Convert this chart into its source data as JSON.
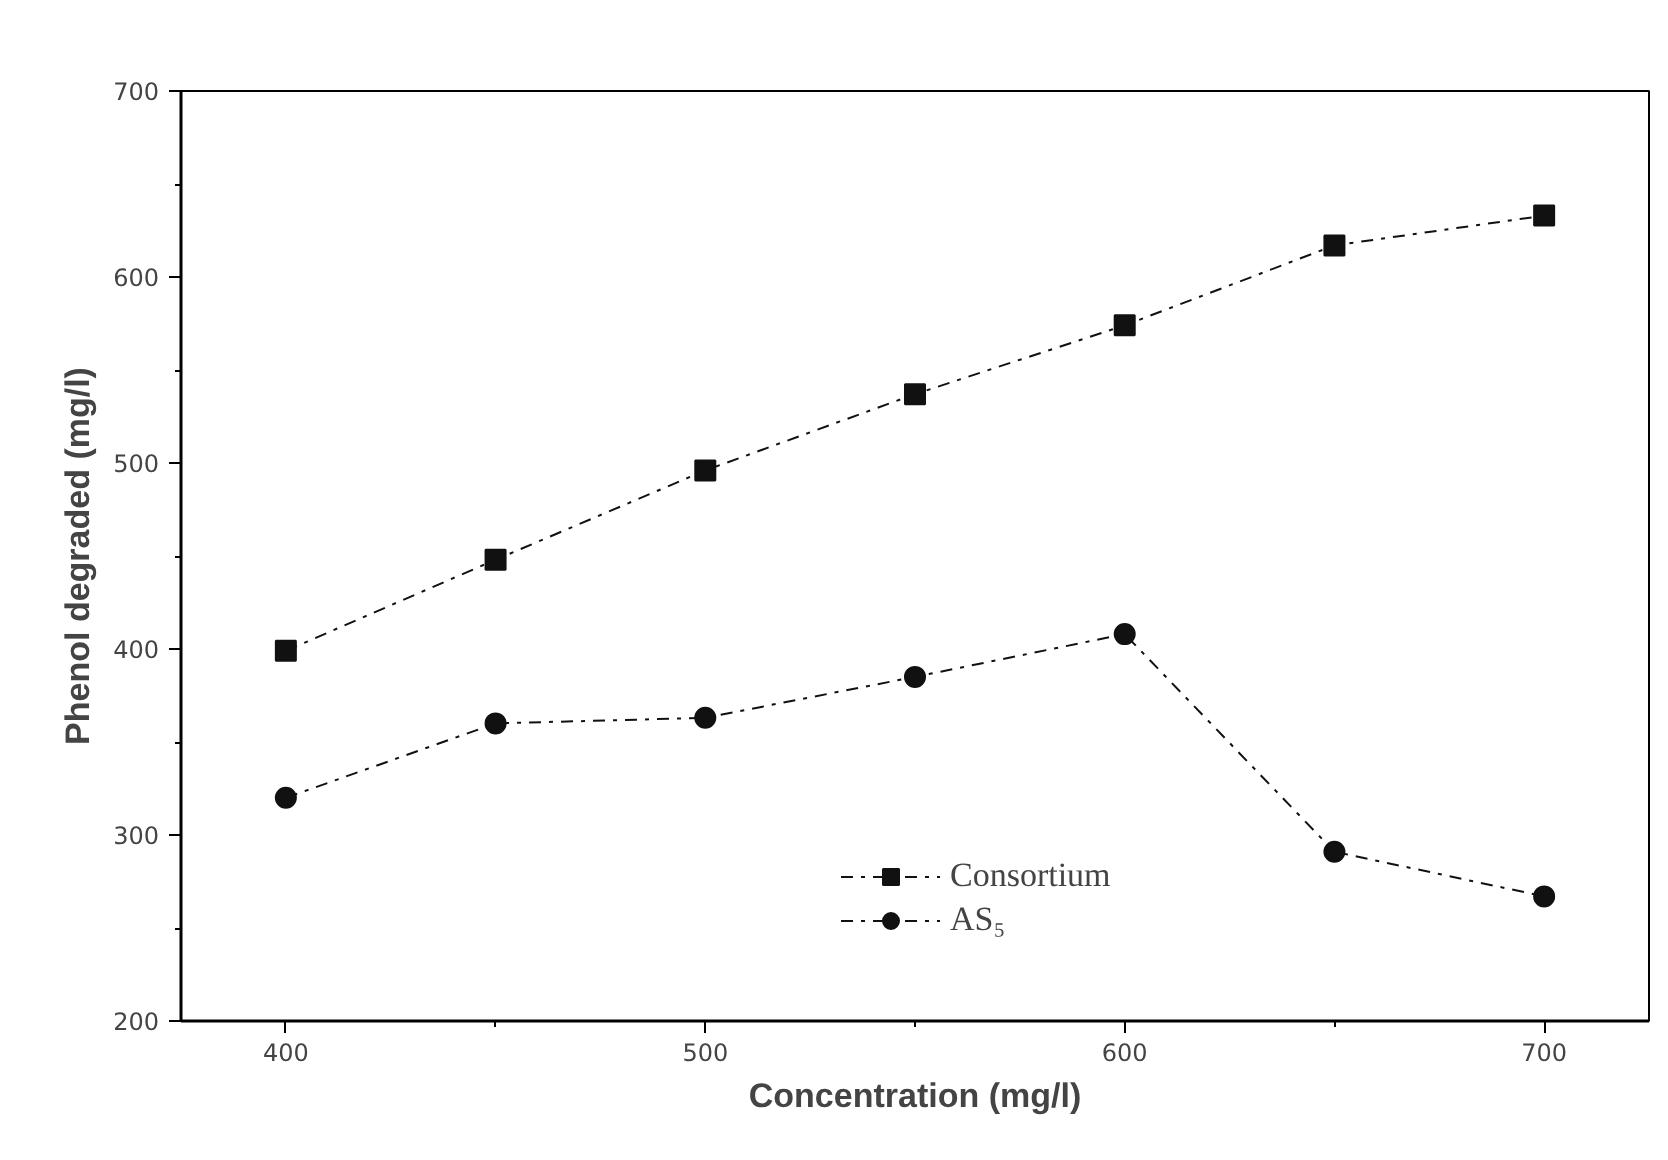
{
  "chart_data": {
    "type": "line",
    "xlabel": "Concentration (mg/l)",
    "ylabel": "Phenol degraded (mg/l)",
    "x": [
      400,
      450,
      500,
      550,
      600,
      650,
      700
    ],
    "series": [
      {
        "name": "Consortium",
        "color": "#111111",
        "marker": "square",
        "values": [
          399,
          448,
          496,
          537,
          574,
          617,
          633
        ]
      },
      {
        "name": "AS₅",
        "color": "#111111",
        "marker": "circle",
        "values": [
          320,
          360,
          363,
          385,
          408,
          291,
          267
        ]
      }
    ],
    "xlim": [
      375,
      725
    ],
    "ylim": [
      200,
      700
    ],
    "xticks": [
      400,
      500,
      600,
      700
    ],
    "yticks": [
      200,
      300,
      400,
      500,
      600,
      700
    ],
    "grid": false,
    "legend": "bottom",
    "line_style": "dashed"
  }
}
